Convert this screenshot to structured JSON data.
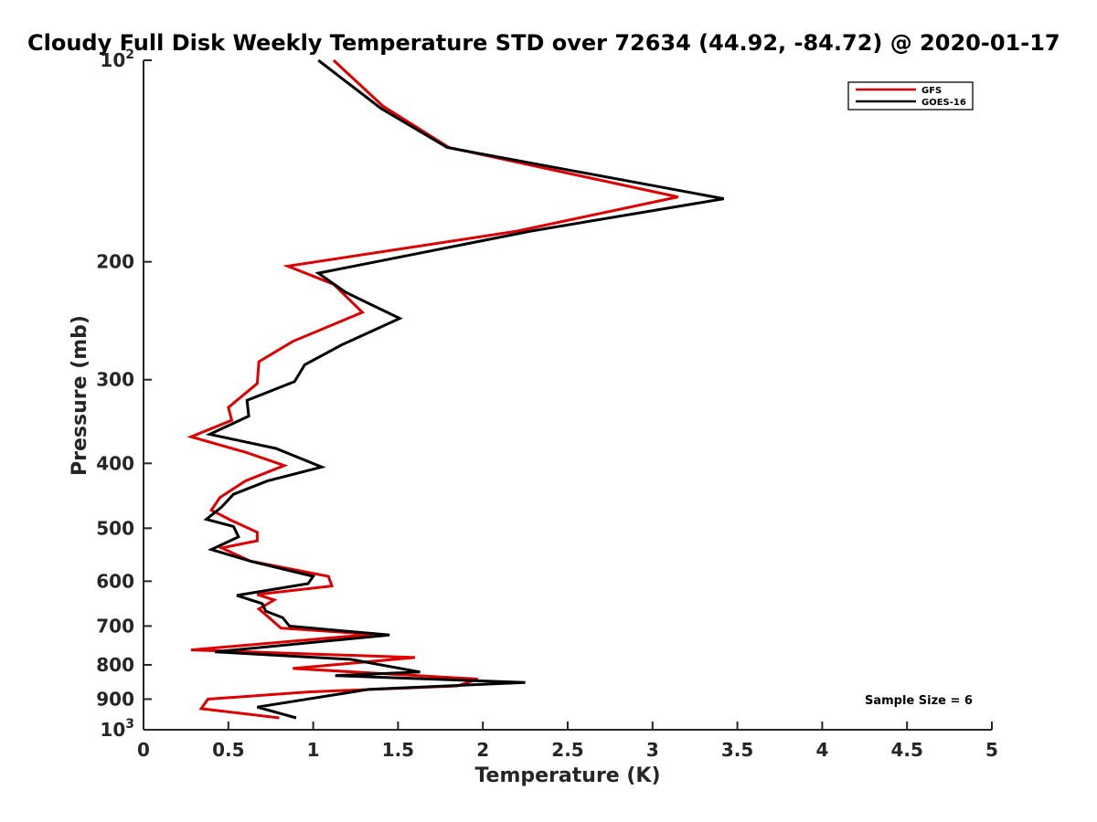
{
  "chart_data": {
    "type": "line",
    "title": "Cloudy Full Disk Weekly Temperature STD over 72634 (44.92, -84.72) @ 2020-01-17",
    "xlabel": "Temperature (K)",
    "ylabel": "Pressure (mb)",
    "xlim": [
      0,
      5
    ],
    "ylim": [
      100,
      1000
    ],
    "y_scale": "log",
    "y_reversed": true,
    "grid": false,
    "legend_position": "top-right",
    "x_ticks": [
      "0",
      "0.5",
      "1",
      "1.5",
      "2",
      "2.5",
      "3",
      "3.5",
      "4",
      "4.5",
      "5"
    ],
    "x_tick_values": [
      0,
      0.5,
      1,
      1.5,
      2,
      2.5,
      3,
      3.5,
      4,
      4.5,
      5
    ],
    "y_ticks": [
      {
        "value": 100,
        "label": "10",
        "sup": "2"
      },
      {
        "value": 200,
        "label": "200",
        "sup": ""
      },
      {
        "value": 300,
        "label": "300",
        "sup": ""
      },
      {
        "value": 400,
        "label": "400",
        "sup": ""
      },
      {
        "value": 500,
        "label": "500",
        "sup": ""
      },
      {
        "value": 600,
        "label": "600",
        "sup": ""
      },
      {
        "value": 700,
        "label": "700",
        "sup": ""
      },
      {
        "value": 800,
        "label": "800",
        "sup": ""
      },
      {
        "value": 900,
        "label": "900",
        "sup": ""
      },
      {
        "value": 1000,
        "label": "10",
        "sup": "3"
      }
    ],
    "annotation": "Sample Size = 6",
    "series": [
      {
        "name": "GFS",
        "color": "#dd0000",
        "points": [
          [
            1.12,
            100
          ],
          [
            1.41,
            117
          ],
          [
            1.8,
            135
          ],
          [
            3.15,
            160
          ],
          [
            2.2,
            180
          ],
          [
            0.85,
            203
          ],
          [
            1.12,
            216
          ],
          [
            1.29,
            238
          ],
          [
            0.88,
            263
          ],
          [
            0.68,
            282
          ],
          [
            0.67,
            304
          ],
          [
            0.5,
            330
          ],
          [
            0.52,
            345
          ],
          [
            0.28,
            365
          ],
          [
            0.6,
            385
          ],
          [
            0.83,
            403
          ],
          [
            0.6,
            425
          ],
          [
            0.45,
            450
          ],
          [
            0.4,
            470
          ],
          [
            0.52,
            487
          ],
          [
            0.67,
            507
          ],
          [
            0.67,
            522
          ],
          [
            0.46,
            535
          ],
          [
            0.63,
            560
          ],
          [
            1.09,
            590
          ],
          [
            1.11,
            610
          ],
          [
            0.67,
            628
          ],
          [
            0.77,
            640
          ],
          [
            0.68,
            660
          ],
          [
            0.74,
            680
          ],
          [
            0.81,
            705
          ],
          [
            1.35,
            720
          ],
          [
            0.28,
            760
          ],
          [
            1.6,
            780
          ],
          [
            0.88,
            810
          ],
          [
            1.97,
            840
          ],
          [
            1.85,
            860
          ],
          [
            0.97,
            878
          ],
          [
            0.38,
            900
          ],
          [
            0.34,
            930
          ],
          [
            0.8,
            960
          ]
        ]
      },
      {
        "name": "GOES-16",
        "color": "#000000",
        "points": [
          [
            1.03,
            100
          ],
          [
            1.4,
            118
          ],
          [
            1.79,
            135
          ],
          [
            3.42,
            161
          ],
          [
            2.28,
            180
          ],
          [
            1.03,
            208
          ],
          [
            1.19,
            222
          ],
          [
            1.51,
            243
          ],
          [
            1.17,
            266
          ],
          [
            0.95,
            285
          ],
          [
            0.89,
            302
          ],
          [
            0.61,
            322
          ],
          [
            0.62,
            340
          ],
          [
            0.39,
            362
          ],
          [
            0.78,
            380
          ],
          [
            1.05,
            405
          ],
          [
            0.73,
            425
          ],
          [
            0.53,
            445
          ],
          [
            0.46,
            465
          ],
          [
            0.37,
            485
          ],
          [
            0.53,
            497
          ],
          [
            0.56,
            515
          ],
          [
            0.4,
            538
          ],
          [
            0.63,
            560
          ],
          [
            1.0,
            590
          ],
          [
            0.97,
            605
          ],
          [
            0.55,
            630
          ],
          [
            0.7,
            648
          ],
          [
            0.72,
            665
          ],
          [
            0.82,
            680
          ],
          [
            0.86,
            700
          ],
          [
            1.45,
            722
          ],
          [
            0.42,
            765
          ],
          [
            1.22,
            785
          ],
          [
            1.63,
            820
          ],
          [
            1.13,
            830
          ],
          [
            2.25,
            850
          ],
          [
            1.33,
            870
          ],
          [
            0.67,
            925
          ],
          [
            0.9,
            960
          ]
        ]
      }
    ]
  }
}
